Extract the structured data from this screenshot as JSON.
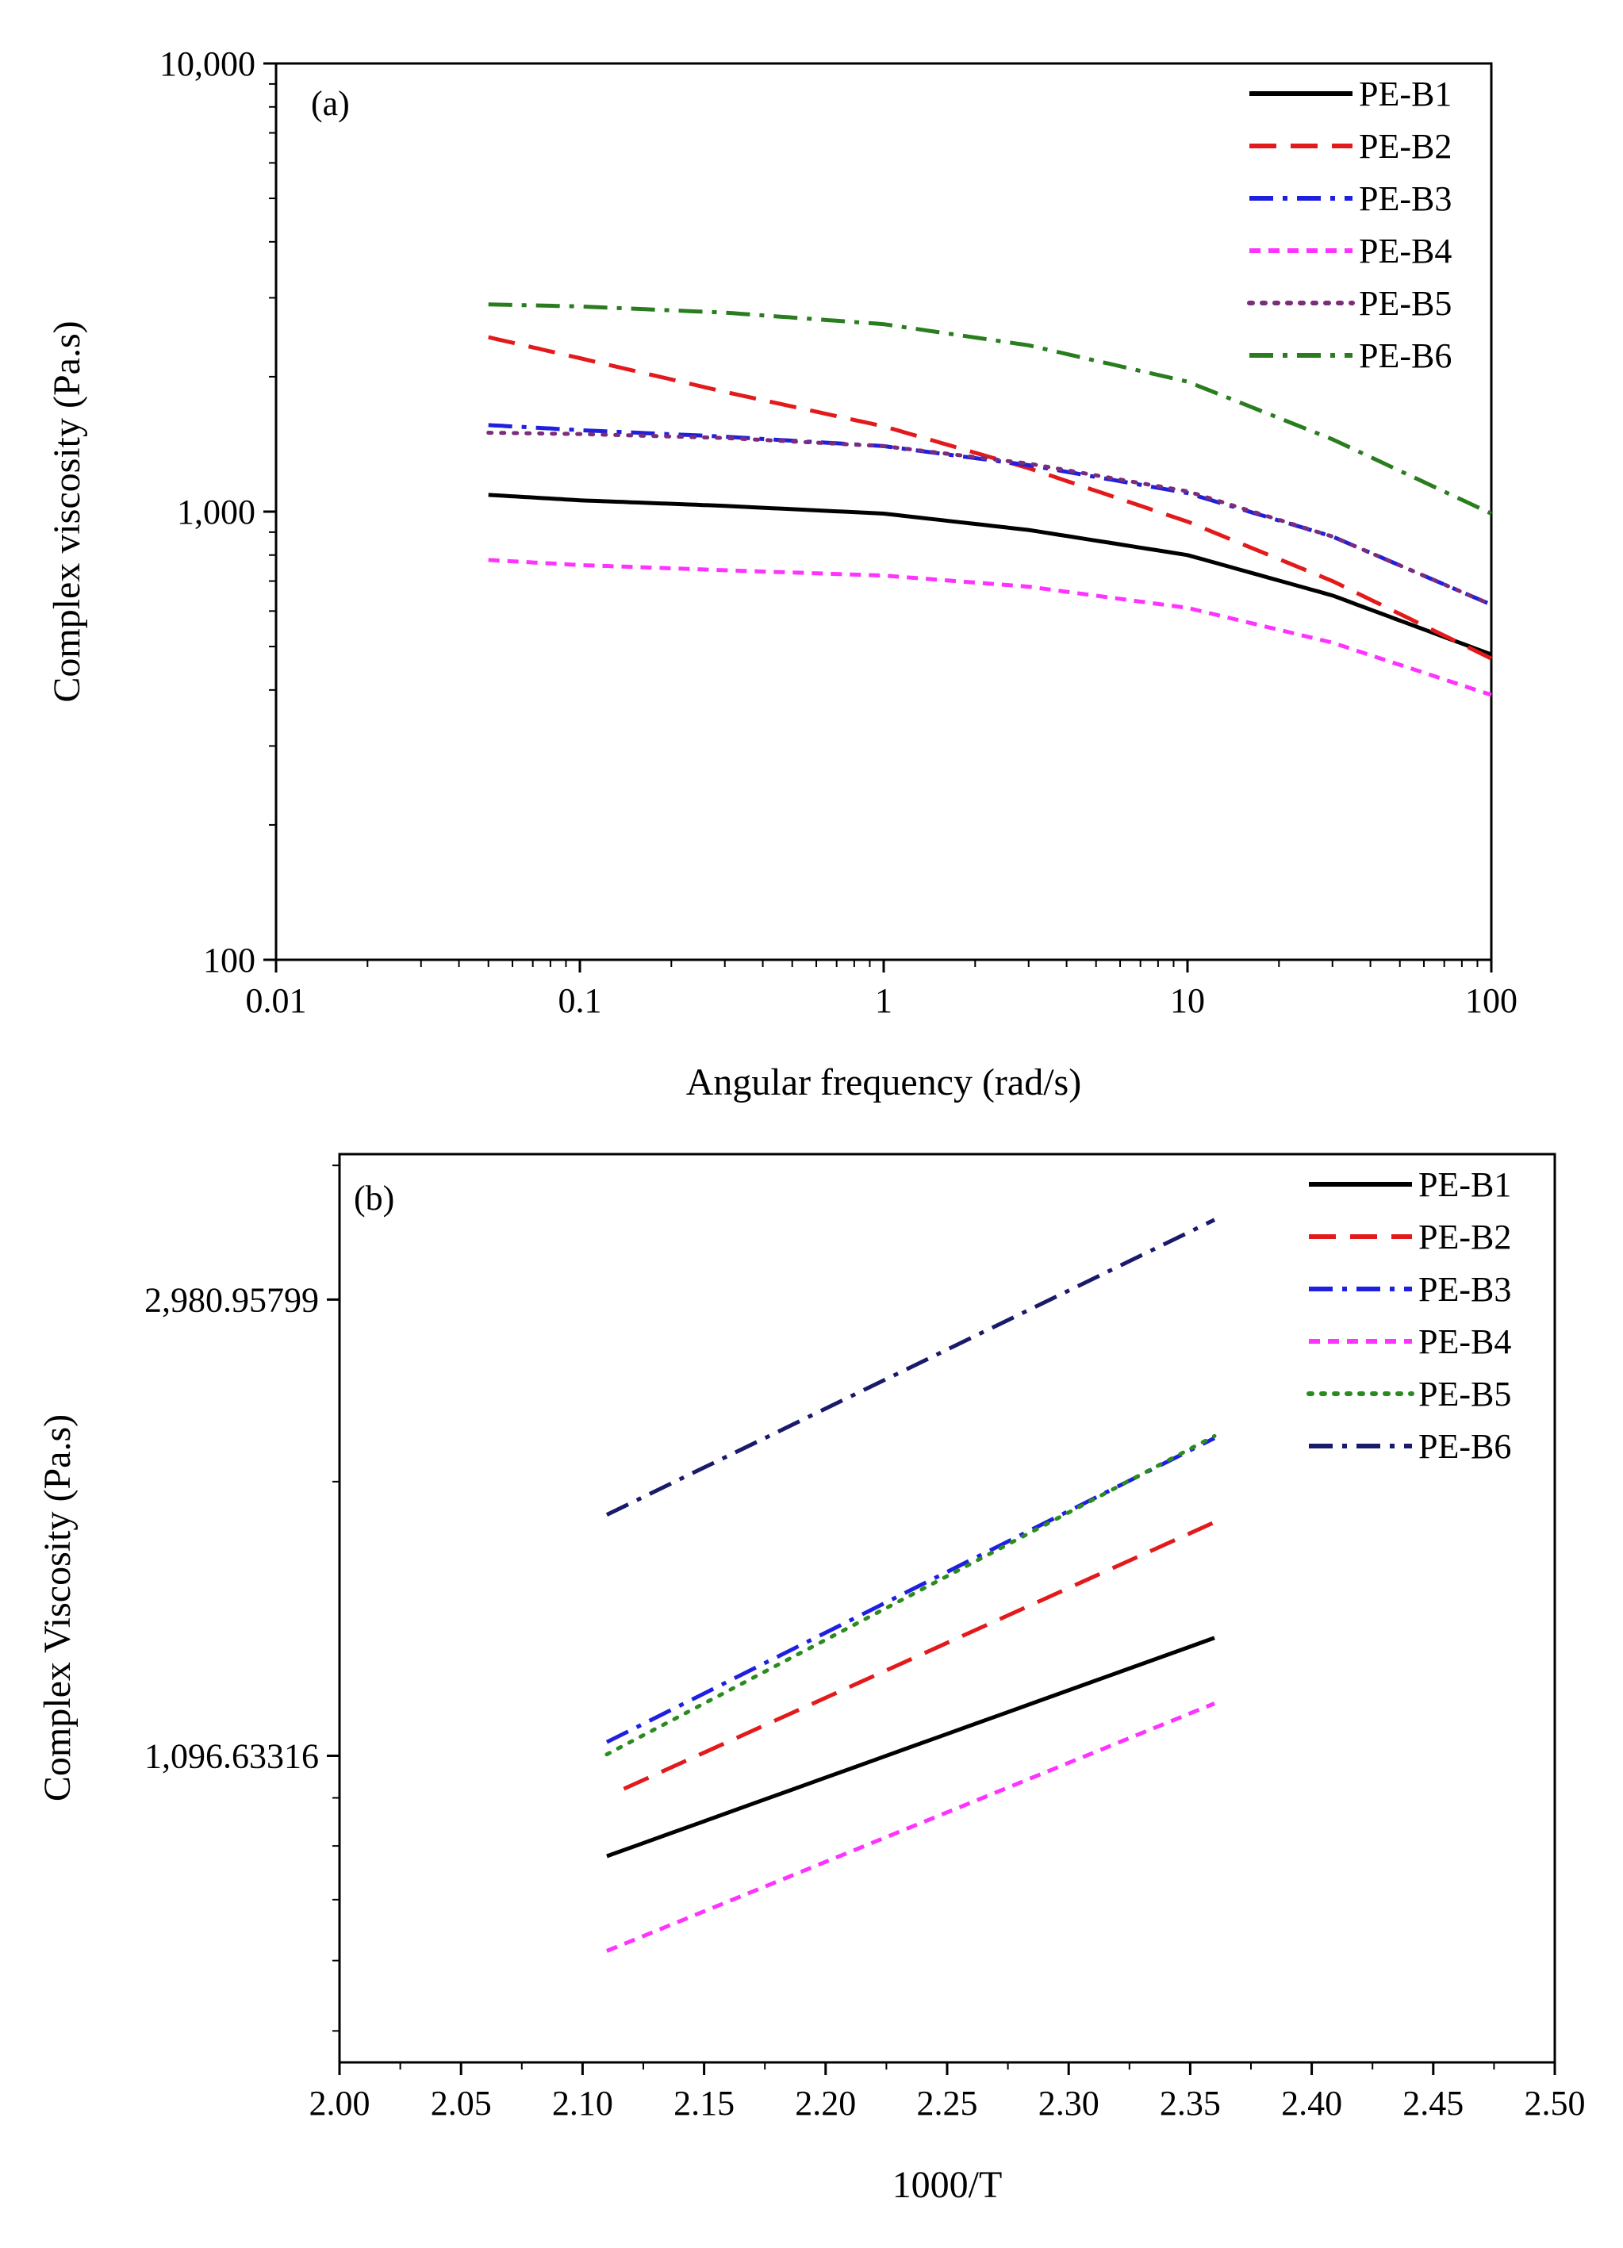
{
  "chart_data": [
    {
      "type": "line",
      "panel_label": "(a)",
      "xlabel": "Angular frequency (rad/s)",
      "ylabel": "Complex viscosity (Pa.s)",
      "xscale": "log",
      "yscale": "log",
      "xlim": [
        0.01,
        100
      ],
      "ylim": [
        100,
        10000
      ],
      "x_ticks": [
        0.01,
        0.1,
        1,
        10,
        100
      ],
      "x_tick_labels": [
        "0.01",
        "0.1",
        "1",
        "10",
        "100"
      ],
      "y_ticks": [
        100,
        1000,
        10000
      ],
      "y_tick_labels": [
        "100",
        "1,000",
        "10,000"
      ],
      "legend_position": "top-right",
      "series": [
        {
          "name": "PE-B1",
          "color": "#000000",
          "style": "solid",
          "x": [
            0.05,
            0.1,
            0.3,
            1,
            3,
            10,
            30,
            100
          ],
          "values": [
            1090,
            1060,
            1030,
            990,
            910,
            800,
            650,
            480
          ]
        },
        {
          "name": "PE-B2",
          "color": "#e31a1c",
          "style": "dash",
          "x": [
            0.05,
            0.1,
            0.3,
            1,
            3,
            10,
            30,
            100
          ],
          "values": [
            2450,
            2200,
            1850,
            1550,
            1250,
            950,
            700,
            470
          ]
        },
        {
          "name": "PE-B3",
          "color": "#1f1fe0",
          "style": "dashdot",
          "x": [
            0.05,
            0.1,
            0.3,
            1,
            3,
            10,
            30,
            100
          ],
          "values": [
            1560,
            1520,
            1470,
            1400,
            1270,
            1100,
            880,
            620
          ]
        },
        {
          "name": "PE-B4",
          "color": "#ff33ff",
          "style": "shortdash",
          "x": [
            0.05,
            0.1,
            0.3,
            1,
            3,
            10,
            30,
            100
          ],
          "values": [
            780,
            760,
            740,
            720,
            680,
            610,
            510,
            390
          ]
        },
        {
          "name": "PE-B5",
          "color": "#7b2d7b",
          "style": "dot",
          "x": [
            0.05,
            0.1,
            0.3,
            1,
            3,
            10,
            30,
            100
          ],
          "values": [
            1500,
            1490,
            1460,
            1400,
            1280,
            1110,
            880,
            620
          ]
        },
        {
          "name": "PE-B6",
          "color": "#2a7d1f",
          "style": "dashdot",
          "x": [
            0.05,
            0.1,
            0.3,
            1,
            3,
            10,
            30,
            100
          ],
          "values": [
            2900,
            2870,
            2780,
            2620,
            2350,
            1950,
            1450,
            990
          ]
        }
      ]
    },
    {
      "type": "line",
      "panel_label": "(b)",
      "xlabel": "1000/T",
      "ylabel": "Complex Viscosity (Pa.s)",
      "xscale": "linear",
      "yscale": "log",
      "xlim": [
        2.0,
        2.5
      ],
      "ylim": [
        560,
        4100
      ],
      "x_ticks": [
        2.0,
        2.05,
        2.1,
        2.15,
        2.2,
        2.25,
        2.3,
        2.35,
        2.4,
        2.45,
        2.5
      ],
      "x_tick_labels": [
        "2.00",
        "2.05",
        "2.10",
        "2.15",
        "2.20",
        "2.25",
        "2.30",
        "2.35",
        "2.40",
        "2.45",
        "2.50"
      ],
      "y_ticks": [
        1096.63316,
        2980.95799
      ],
      "y_tick_labels": [
        "1,096.63316",
        "2,980.95799"
      ],
      "legend_position": "top-right",
      "series": [
        {
          "name": "PE-B1",
          "color": "#000000",
          "style": "solid",
          "x": [
            2.11,
            2.36
          ],
          "values": [
            880,
            1420
          ]
        },
        {
          "name": "PE-B2",
          "color": "#e31a1c",
          "style": "dash",
          "x": [
            2.117,
            2.36
          ],
          "values": [
            1020,
            1830
          ]
        },
        {
          "name": "PE-B3",
          "color": "#1f1fe0",
          "style": "dashdot",
          "x": [
            2.11,
            2.36
          ],
          "values": [
            1130,
            2200
          ]
        },
        {
          "name": "PE-B4",
          "color": "#ff33ff",
          "style": "shortdash",
          "x": [
            2.11,
            2.36
          ],
          "values": [
            715,
            1230
          ]
        },
        {
          "name": "PE-B5",
          "color": "#2a8c1f",
          "style": "dot",
          "x": [
            2.11,
            2.36
          ],
          "values": [
            1100,
            2210
          ]
        },
        {
          "name": "PE-B6",
          "color": "#1a1a6b",
          "style": "dashdot",
          "x": [
            2.11,
            2.36
          ],
          "values": [
            1860,
            3550
          ]
        }
      ]
    }
  ]
}
